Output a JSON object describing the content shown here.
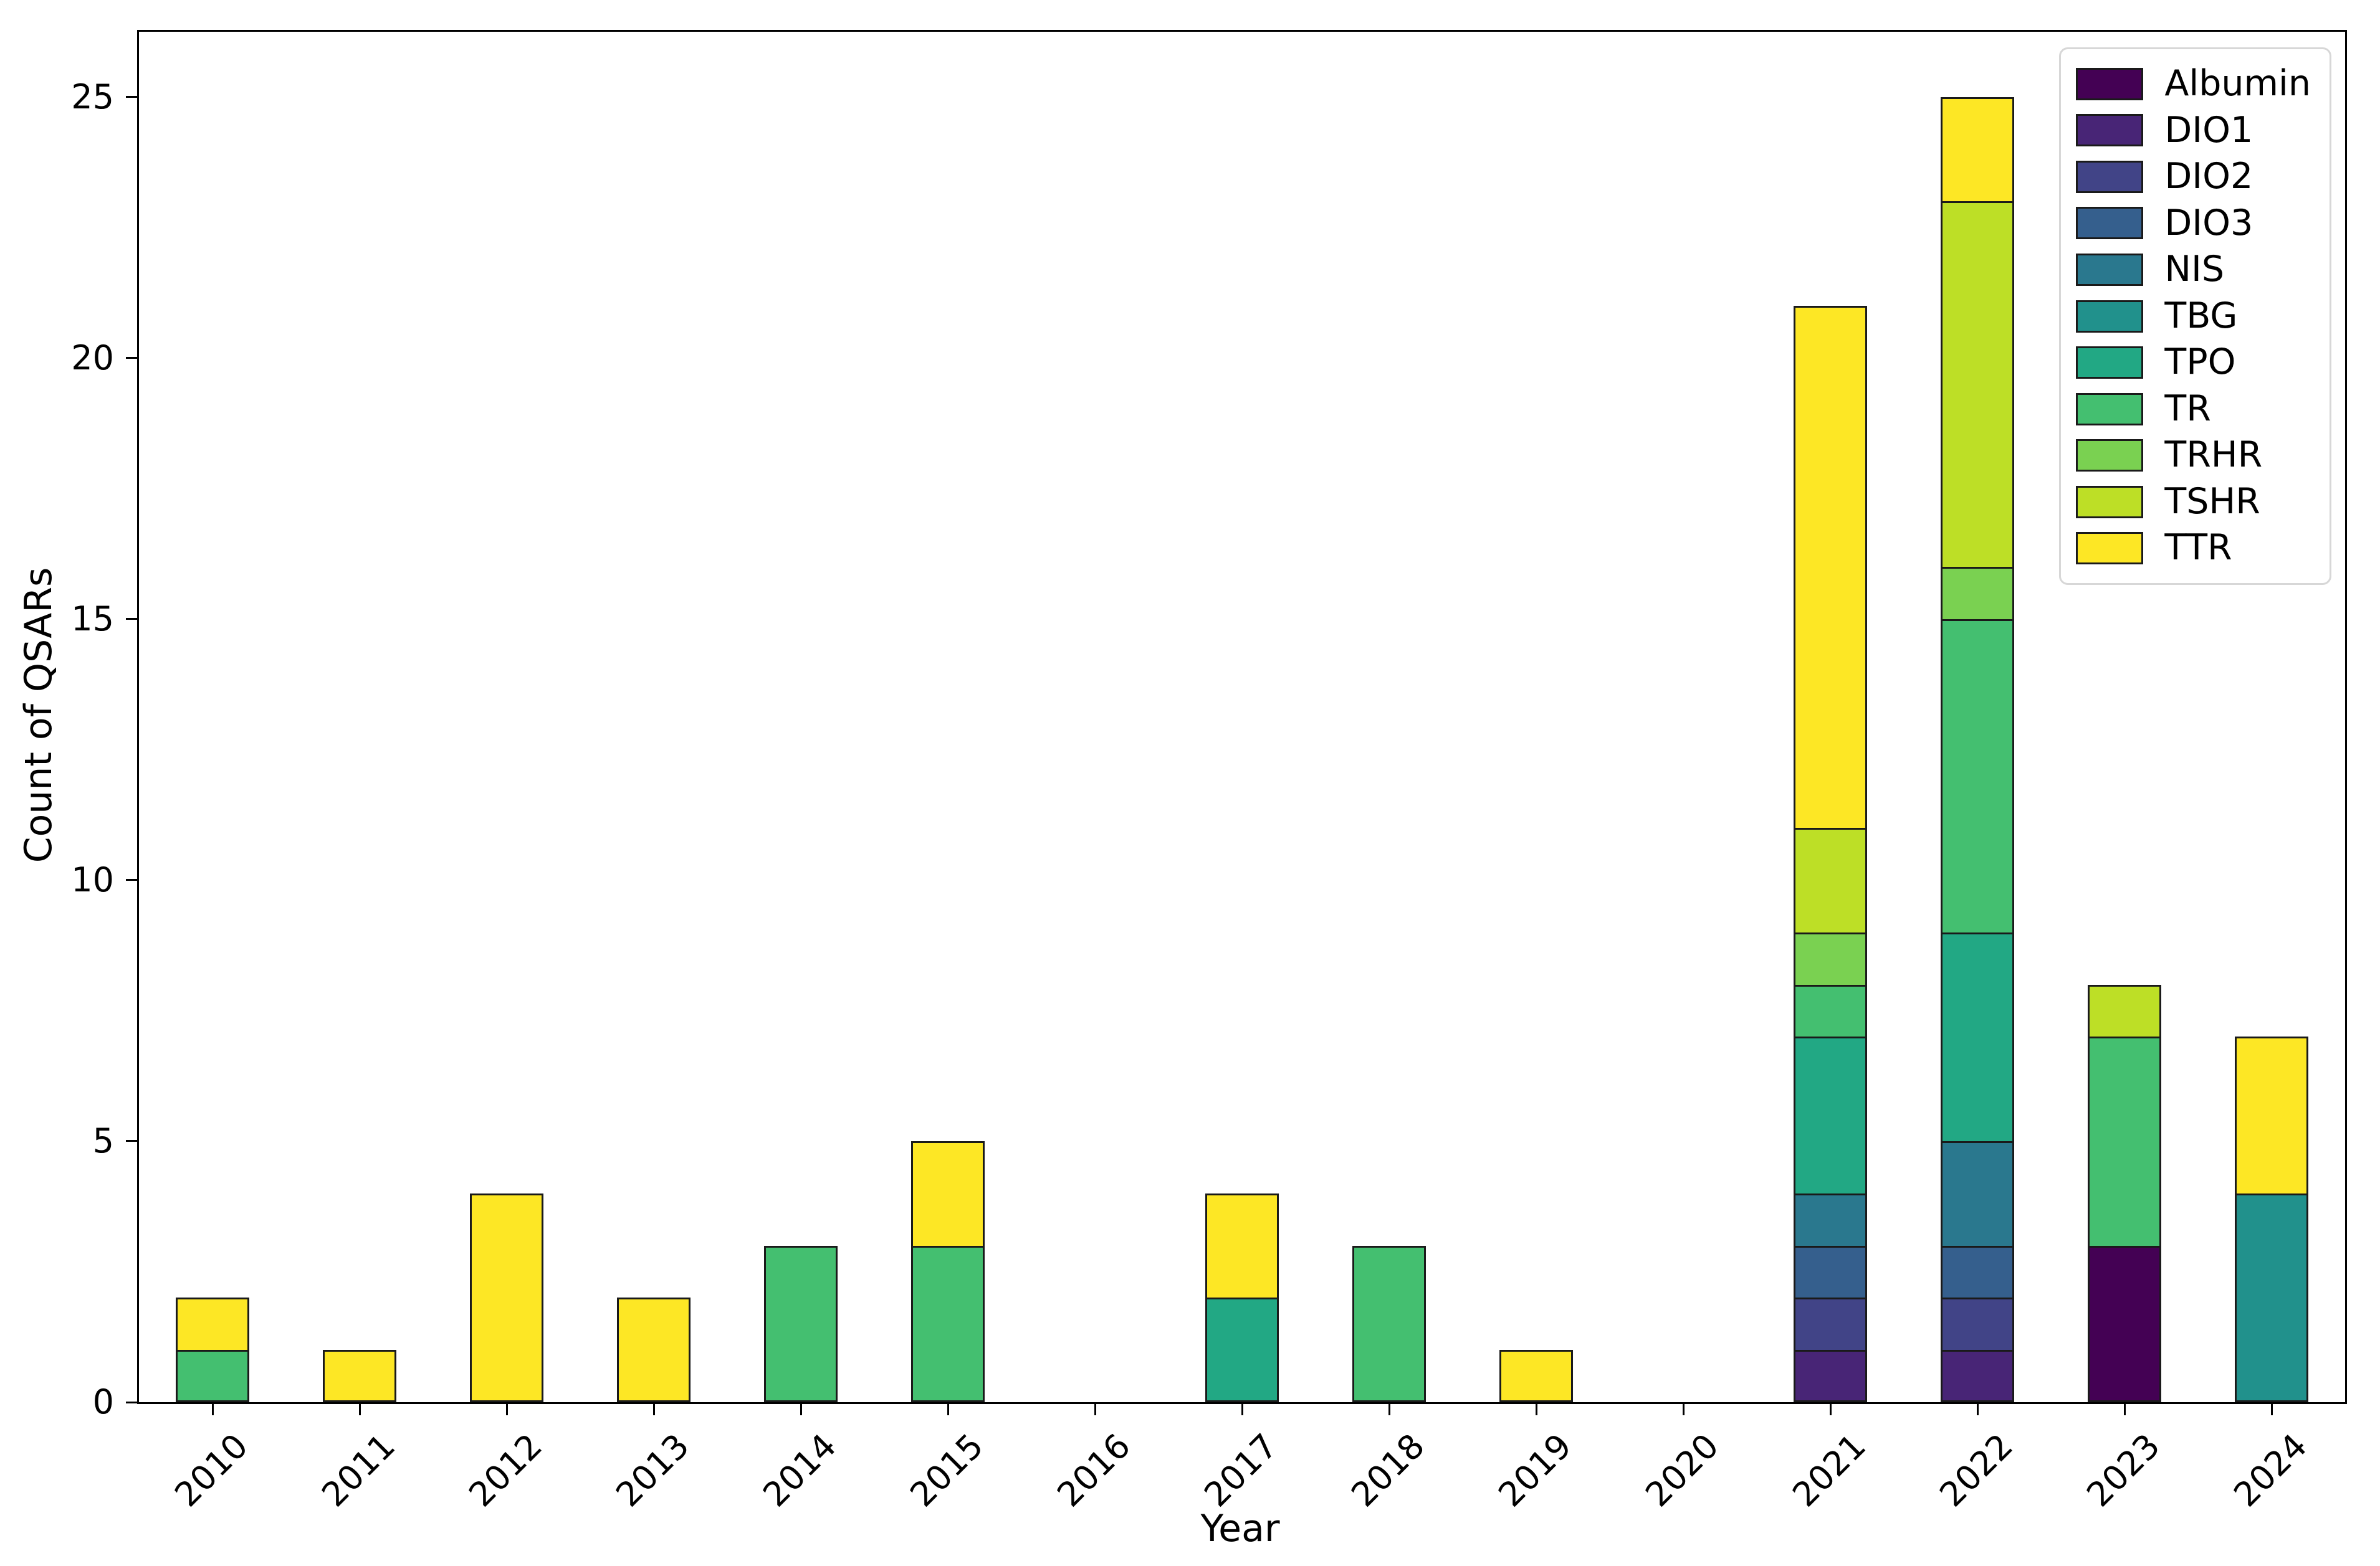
{
  "figure": {
    "background": "#ffffff",
    "text_color": "#000000",
    "bar_edge_color": "#1a1a1a",
    "legend_border_color": "#d7d7d7"
  },
  "chart_data": {
    "type": "bar",
    "stacked": true,
    "title": "",
    "xlabel": "Year",
    "ylabel": "Count of QSARs",
    "categories": [
      "2010",
      "2011",
      "2012",
      "2013",
      "2014",
      "2015",
      "2016",
      "2017",
      "2018",
      "2019",
      "2020",
      "2021",
      "2022",
      "2023",
      "2024"
    ],
    "series": [
      {
        "name": "Albumin",
        "color": "#440154",
        "values": [
          0,
          0,
          0,
          0,
          0,
          0,
          0,
          0,
          0,
          0,
          0,
          0,
          0,
          3,
          0
        ]
      },
      {
        "name": "DIO1",
        "color": "#482576",
        "values": [
          0,
          0,
          0,
          0,
          0,
          0,
          0,
          0,
          0,
          0,
          0,
          1,
          1,
          0,
          0
        ]
      },
      {
        "name": "DIO2",
        "color": "#414487",
        "values": [
          0,
          0,
          0,
          0,
          0,
          0,
          0,
          0,
          0,
          0,
          0,
          1,
          1,
          0,
          0
        ]
      },
      {
        "name": "DIO3",
        "color": "#355f8d",
        "values": [
          0,
          0,
          0,
          0,
          0,
          0,
          0,
          0,
          0,
          0,
          0,
          1,
          1,
          0,
          0
        ]
      },
      {
        "name": "NIS",
        "color": "#2a788e",
        "values": [
          0,
          0,
          0,
          0,
          0,
          0,
          0,
          0,
          0,
          0,
          0,
          1,
          2,
          0,
          0
        ]
      },
      {
        "name": "TBG",
        "color": "#21918c",
        "values": [
          0,
          0,
          0,
          0,
          0,
          0,
          0,
          0,
          0,
          0,
          0,
          0,
          0,
          0,
          4
        ]
      },
      {
        "name": "TPO",
        "color": "#22a884",
        "values": [
          0,
          0,
          0,
          0,
          0,
          0,
          0,
          2,
          0,
          0,
          0,
          3,
          4,
          0,
          0
        ]
      },
      {
        "name": "TR",
        "color": "#44bf70",
        "values": [
          1,
          0,
          0,
          0,
          3,
          3,
          0,
          0,
          3,
          0,
          0,
          1,
          6,
          4,
          0
        ]
      },
      {
        "name": "TRHR",
        "color": "#7ad151",
        "values": [
          0,
          0,
          0,
          0,
          0,
          0,
          0,
          0,
          0,
          0,
          0,
          1,
          1,
          0,
          0
        ]
      },
      {
        "name": "TSHR",
        "color": "#bddf26",
        "values": [
          0,
          0,
          0,
          0,
          0,
          0,
          0,
          0,
          0,
          0,
          0,
          2,
          7,
          1,
          0
        ]
      },
      {
        "name": "TTR",
        "color": "#fde725",
        "values": [
          1,
          1,
          4,
          2,
          0,
          2,
          0,
          2,
          0,
          1,
          0,
          10,
          2,
          0,
          3
        ]
      }
    ],
    "totals_by_year": [
      2,
      1,
      4,
      2,
      3,
      5,
      0,
      4,
      3,
      1,
      0,
      21,
      25,
      8,
      7
    ],
    "yticks": [
      0,
      5,
      10,
      15,
      20,
      25
    ],
    "ylim": [
      0,
      26.25
    ],
    "grid": false,
    "legend": {
      "position": "upper right",
      "entries": [
        "Albumin",
        "DIO1",
        "DIO2",
        "DIO3",
        "NIS",
        "TBG",
        "TPO",
        "TR",
        "TRHR",
        "TSHR",
        "TTR"
      ]
    }
  }
}
